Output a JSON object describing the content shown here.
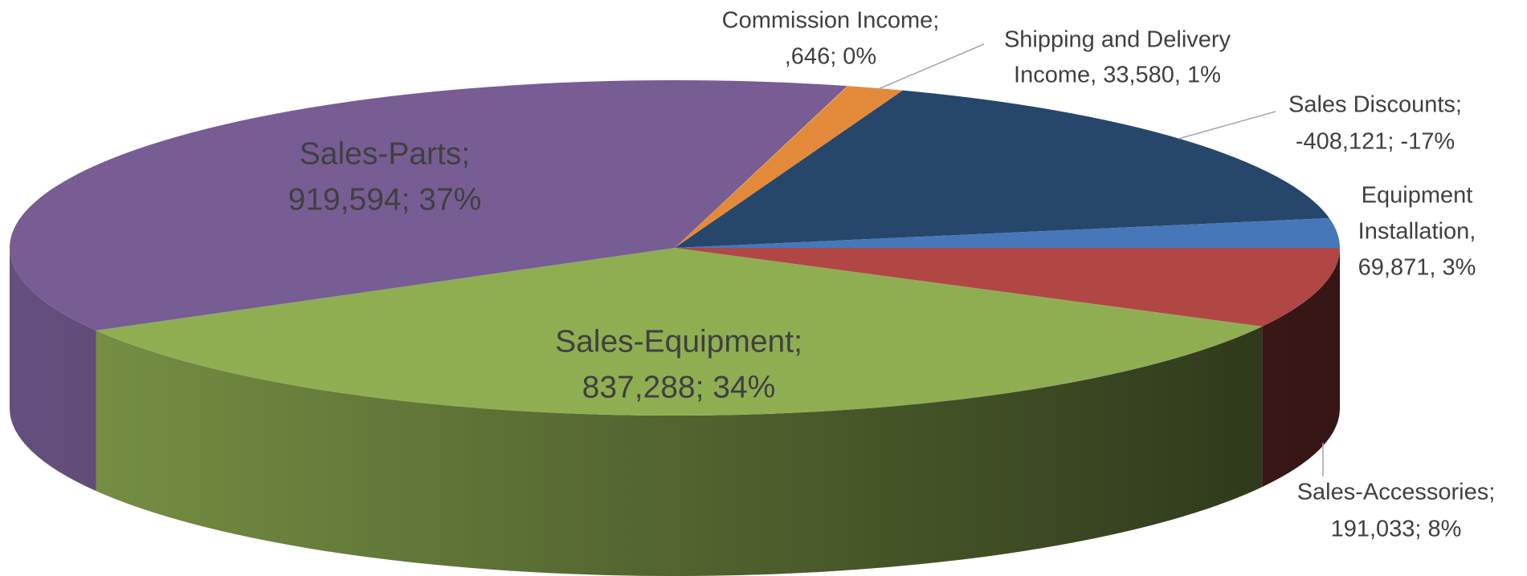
{
  "chart_data": {
    "type": "pie3d",
    "labels": [
      [
        "Sales-Accessories;",
        "191,033; 8%"
      ],
      [
        "Sales-Equipment;",
        "837,288; 34%"
      ],
      [
        "Sales-Parts;",
        "919,594; 37%"
      ],
      [
        "Commission Income;",
        ",646; 0%"
      ],
      [
        "Shipping and Delivery",
        "Income, 33,580, 1%"
      ],
      [
        "Sales Discounts;",
        "-408,121; -17%"
      ],
      [
        "Equipment",
        "Installation,",
        "69,871, 3%"
      ]
    ],
    "values": [
      191033,
      837288,
      919594,
      646,
      33580,
      -408121,
      69871
    ],
    "colors": [
      "#b04745",
      "#8fae52",
      "#775d94",
      "#e9a03c",
      "#e38a3a",
      "#27466b",
      "#4677b8"
    ]
  }
}
